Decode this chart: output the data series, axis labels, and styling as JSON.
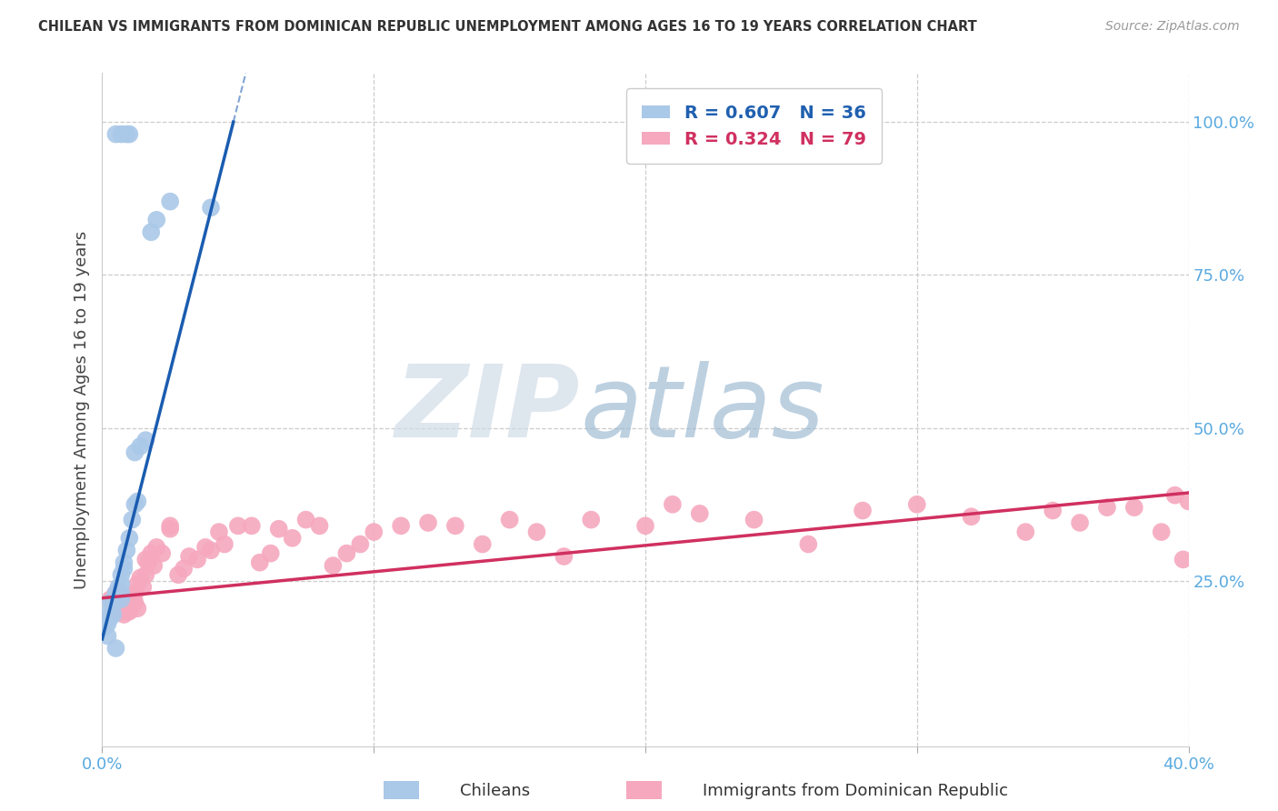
{
  "title": "CHILEAN VS IMMIGRANTS FROM DOMINICAN REPUBLIC UNEMPLOYMENT AMONG AGES 16 TO 19 YEARS CORRELATION CHART",
  "source": "Source: ZipAtlas.com",
  "ylabel": "Unemployment Among Ages 16 to 19 years",
  "xlim": [
    0.0,
    0.4
  ],
  "ylim": [
    -0.02,
    1.08
  ],
  "legend_R_blue": "0.607",
  "legend_N_blue": "36",
  "legend_R_pink": "0.324",
  "legend_N_pink": "79",
  "blue_color": "#aac8e8",
  "pink_color": "#f5a8be",
  "blue_line_color": "#1a5cb0",
  "pink_line_color": "#d03060",
  "watermark_zip_color": "#d0dce8",
  "watermark_atlas_color": "#a0bcd4",
  "blue_scatter_x": [
    0.001,
    0.002,
    0.002,
    0.003,
    0.003,
    0.003,
    0.004,
    0.004,
    0.005,
    0.005,
    0.005,
    0.006,
    0.006,
    0.007,
    0.007,
    0.007,
    0.007,
    0.008,
    0.008,
    0.009,
    0.01,
    0.011,
    0.012,
    0.013,
    0.014,
    0.016,
    0.018,
    0.02,
    0.025,
    0.04,
    0.005,
    0.007,
    0.009,
    0.01,
    0.012,
    0.005
  ],
  "blue_scatter_y": [
    0.175,
    0.16,
    0.18,
    0.19,
    0.2,
    0.215,
    0.195,
    0.21,
    0.22,
    0.225,
    0.23,
    0.235,
    0.24,
    0.22,
    0.23,
    0.245,
    0.26,
    0.27,
    0.28,
    0.3,
    0.32,
    0.35,
    0.375,
    0.38,
    0.47,
    0.48,
    0.82,
    0.84,
    0.87,
    0.86,
    0.98,
    0.98,
    0.98,
    0.98,
    0.46,
    0.14
  ],
  "pink_scatter_x": [
    0.003,
    0.004,
    0.005,
    0.005,
    0.006,
    0.006,
    0.007,
    0.007,
    0.007,
    0.008,
    0.008,
    0.008,
    0.009,
    0.009,
    0.01,
    0.01,
    0.01,
    0.011,
    0.011,
    0.012,
    0.012,
    0.013,
    0.013,
    0.014,
    0.015,
    0.016,
    0.016,
    0.017,
    0.018,
    0.019,
    0.02,
    0.022,
    0.025,
    0.025,
    0.028,
    0.03,
    0.032,
    0.035,
    0.038,
    0.04,
    0.043,
    0.045,
    0.05,
    0.055,
    0.058,
    0.062,
    0.065,
    0.07,
    0.075,
    0.08,
    0.085,
    0.09,
    0.095,
    0.1,
    0.11,
    0.12,
    0.13,
    0.14,
    0.15,
    0.16,
    0.17,
    0.18,
    0.2,
    0.21,
    0.22,
    0.24,
    0.26,
    0.28,
    0.3,
    0.32,
    0.34,
    0.35,
    0.36,
    0.37,
    0.38,
    0.39,
    0.395,
    0.398,
    0.4
  ],
  "pink_scatter_y": [
    0.22,
    0.2,
    0.21,
    0.23,
    0.2,
    0.21,
    0.205,
    0.215,
    0.23,
    0.195,
    0.21,
    0.225,
    0.2,
    0.215,
    0.2,
    0.215,
    0.225,
    0.21,
    0.225,
    0.215,
    0.23,
    0.205,
    0.245,
    0.255,
    0.24,
    0.26,
    0.285,
    0.28,
    0.295,
    0.275,
    0.305,
    0.295,
    0.335,
    0.34,
    0.26,
    0.27,
    0.29,
    0.285,
    0.305,
    0.3,
    0.33,
    0.31,
    0.34,
    0.34,
    0.28,
    0.295,
    0.335,
    0.32,
    0.35,
    0.34,
    0.275,
    0.295,
    0.31,
    0.33,
    0.34,
    0.345,
    0.34,
    0.31,
    0.35,
    0.33,
    0.29,
    0.35,
    0.34,
    0.375,
    0.36,
    0.35,
    0.31,
    0.365,
    0.375,
    0.355,
    0.33,
    0.365,
    0.345,
    0.37,
    0.37,
    0.33,
    0.39,
    0.285,
    0.38
  ],
  "blue_line_x0": 0.0,
  "blue_line_y0": 0.155,
  "blue_line_slope": 17.5,
  "pink_line_x0": 0.0,
  "pink_line_y0": 0.222,
  "pink_line_slope": 0.43
}
